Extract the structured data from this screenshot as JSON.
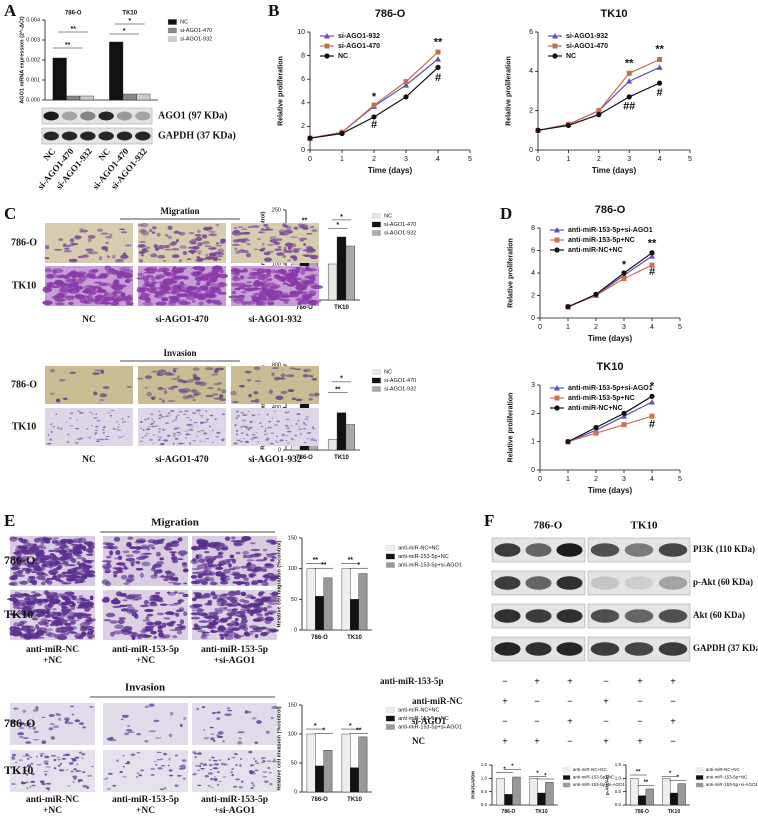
{
  "chart_data": [
    {
      "type": "bar",
      "ylabel": "AGO1 mRNA expression (2^-ΔCt)",
      "categories": [
        "786-O",
        "TK10"
      ],
      "series": [
        {
          "name": "NC",
          "color": "#111111",
          "values": [
            0.0021,
            0.0029
          ]
        },
        {
          "name": "si-AGO1-470",
          "color": "#888888",
          "values": [
            0.0002,
            0.0003
          ]
        },
        {
          "name": "si-AGO1-932",
          "color": "#cccccc",
          "values": [
            0.0002,
            0.0003
          ]
        }
      ],
      "ylim": [
        0,
        0.004
      ],
      "yticks": [
        {
          "value": 0,
          "label": "0.000"
        },
        {
          "value": 0.001,
          "label": "0.001"
        },
        {
          "value": 0.002,
          "label": "0.002"
        },
        {
          "value": 0.003,
          "label": "0.003"
        },
        {
          "value": 0.004,
          "label": "0.004"
        }
      ],
      "annotations": [
        {
          "text": "**",
          "x": 0,
          "y": 0.0035
        },
        {
          "text": "**",
          "x": -0.1,
          "y": 0.0027
        },
        {
          "text": "*",
          "x": 0,
          "y": 0.0039
        },
        {
          "text": "*",
          "x": -0.1,
          "y": 0.0034
        }
      ]
    },
    {
      "type": "line",
      "title": "786-O",
      "xlabel": "Time (days)",
      "ylabel": "Relative proliferation",
      "x": [
        0,
        1,
        2,
        3,
        4
      ],
      "series": [
        {
          "name": "si-AGO1-932",
          "color": "#5b4fc4",
          "values": [
            1,
            1.5,
            3.7,
            5.5,
            7.7
          ]
        },
        {
          "name": "si-AGO1-470",
          "color": "#c0704f",
          "values": [
            1,
            1.5,
            3.8,
            5.8,
            8.3
          ]
        },
        {
          "name": "NC",
          "color": "#111111",
          "values": [
            1,
            1.4,
            2.8,
            4.5,
            7.0
          ]
        }
      ],
      "xlim": [
        0,
        5
      ],
      "xticks": [
        0,
        1,
        2,
        3,
        4,
        5
      ],
      "ylim": [
        0,
        10
      ],
      "yticks": [
        0,
        2,
        4,
        6,
        8,
        10
      ],
      "annotations": [
        {
          "text": "*",
          "x": 2,
          "y": 4.5
        },
        {
          "text": "#",
          "x": 2,
          "y": 2.1
        },
        {
          "text": "**",
          "x": 4,
          "y": 9.1
        },
        {
          "text": "#",
          "x": 4,
          "y": 6.1
        }
      ]
    },
    {
      "type": "line",
      "title": "TK10",
      "xlabel": "Time (days)",
      "ylabel": "Relative proliferation",
      "x": [
        0,
        1,
        2,
        3,
        4
      ],
      "series": [
        {
          "name": "si-AGO1-932",
          "color": "#5b4fc4",
          "values": [
            1,
            1.3,
            2.0,
            3.5,
            4.2
          ]
        },
        {
          "name": "si-AGO1-470",
          "color": "#c0704f",
          "values": [
            1,
            1.3,
            2.0,
            3.9,
            4.6
          ]
        },
        {
          "name": "NC",
          "color": "#111111",
          "values": [
            1,
            1.25,
            1.8,
            2.7,
            3.4
          ]
        }
      ],
      "xlim": [
        0,
        5
      ],
      "xticks": [
        0,
        1,
        2,
        3,
        4,
        5
      ],
      "ylim": [
        0,
        6
      ],
      "yticks": [
        0,
        2,
        4,
        6
      ],
      "annotations": [
        {
          "text": "**",
          "x": 3,
          "y": 4.4
        },
        {
          "text": "##",
          "x": 3,
          "y": 2.2
        },
        {
          "text": "**",
          "x": 4,
          "y": 5.1
        },
        {
          "text": "#",
          "x": 4,
          "y": 2.9
        }
      ]
    },
    {
      "type": "bar",
      "ylabel": "Relative cell migration (%control)",
      "categories": [
        "786-O",
        "TK10"
      ],
      "series": [
        {
          "name": "NC",
          "color": "#e6e6e6",
          "values": [
            100,
            100
          ]
        },
        {
          "name": "si-AGO1-470",
          "color": "#111111",
          "values": [
            165,
            175
          ]
        },
        {
          "name": "si-AGO1-932",
          "color": "#aaaaaa",
          "values": [
            150,
            150
          ]
        }
      ],
      "ylim": [
        0,
        250
      ],
      "yticks": [
        0,
        50,
        100,
        150,
        200,
        250
      ],
      "annotations": [
        {
          "text": "**",
          "x": 0,
          "y": 218
        },
        {
          "text": "*",
          "x": -0.1,
          "y": 190
        },
        {
          "text": "*",
          "x": 0,
          "y": 228
        },
        {
          "text": "*",
          "x": -0.1,
          "y": 205
        }
      ]
    },
    {
      "type": "bar",
      "ylabel": "Relative cell invasion (%control)",
      "categories": [
        "786-O",
        "TK10"
      ],
      "series": [
        {
          "name": "NC",
          "color": "#e6e6e6",
          "values": [
            100,
            100
          ]
        },
        {
          "name": "si-AGO1-470",
          "color": "#111111",
          "values": [
            455,
            350
          ]
        },
        {
          "name": "si-AGO1-932",
          "color": "#aaaaaa",
          "values": [
            230,
            240
          ]
        }
      ],
      "ylim": [
        0,
        800
      ],
      "yticks": [
        0,
        200,
        400,
        600,
        800
      ],
      "annotations": [
        {
          "text": "*",
          "x": 0,
          "y": 690
        },
        {
          "text": "*",
          "x": -0.1,
          "y": 580
        },
        {
          "text": "*",
          "x": 0,
          "y": 660
        },
        {
          "text": "**",
          "x": -0.1,
          "y": 560
        }
      ]
    },
    {
      "type": "line",
      "title": "786-O",
      "xlabel": "Time (days)",
      "ylabel": "Relative proliferation",
      "x": [
        1,
        2,
        3,
        4
      ],
      "series": [
        {
          "name": "anti-miR-153-5p+si-AGO1",
          "color": "#5b4fc4",
          "values": [
            1,
            2.0,
            3.8,
            5.5
          ]
        },
        {
          "name": "anti-miR-153-5p+NC",
          "color": "#c8734f",
          "values": [
            1,
            2.0,
            3.5,
            4.7
          ]
        },
        {
          "name": "anti-miR-NC+NC",
          "color": "#111111",
          "values": [
            1,
            2.1,
            4.0,
            5.8
          ]
        }
      ],
      "xlim": [
        0,
        5
      ],
      "xticks": [
        0,
        1,
        2,
        3,
        4,
        5
      ],
      "ylim": [
        0,
        8
      ],
      "yticks": [
        0,
        2,
        4,
        6,
        8
      ],
      "annotations": [
        {
          "text": "*",
          "x": 3,
          "y": 4.7
        },
        {
          "text": "**",
          "x": 4,
          "y": 6.6
        },
        {
          "text": "#",
          "x": 4,
          "y": 4.1
        }
      ]
    },
    {
      "type": "line",
      "title": "TK10",
      "xlabel": "Time (days)",
      "ylabel": "Relative proliferation",
      "x": [
        1,
        2,
        3,
        4
      ],
      "series": [
        {
          "name": "anti-miR-153-5p+si-AGO1",
          "color": "#5b4fc4",
          "values": [
            1,
            1.4,
            1.9,
            2.4
          ]
        },
        {
          "name": "anti-miR-153-5p+NC",
          "color": "#c8734f",
          "values": [
            1,
            1.3,
            1.6,
            1.9
          ]
        },
        {
          "name": "anti-miR-NC+NC",
          "color": "#111111",
          "values": [
            1,
            1.5,
            2.0,
            2.6
          ]
        }
      ],
      "xlim": [
        0,
        5
      ],
      "xticks": [
        0,
        1,
        2,
        3,
        4,
        5
      ],
      "ylim": [
        0,
        3
      ],
      "yticks": [
        0,
        1,
        2,
        3
      ],
      "annotations": [
        {
          "text": "*",
          "x": 4,
          "y": 2.95
        },
        {
          "text": "#",
          "x": 4,
          "y": 1.6
        }
      ]
    },
    {
      "type": "bar",
      "ylabel": "Relative cell migration (%control)",
      "categories": [
        "786-O",
        "TK10"
      ],
      "series": [
        {
          "name": "anti-miR-NC+NC",
          "color": "#eeeeee",
          "values": [
            100,
            100
          ]
        },
        {
          "name": "anti-miR-153-5p+NC",
          "color": "#111111",
          "values": [
            55,
            50
          ]
        },
        {
          "name": "anti-miR-153-5p+si-AGO1",
          "color": "#999999",
          "values": [
            85,
            92
          ]
        }
      ],
      "ylim": [
        0,
        150
      ],
      "yticks": [
        0,
        50,
        100,
        150
      ],
      "annotations": [
        {
          "text": "**",
          "x": -0.12,
          "y": 112
        },
        {
          "text": "**",
          "x": 0.12,
          "y": 104
        },
        {
          "text": "**",
          "x": -0.12,
          "y": 112
        },
        {
          "text": "*",
          "x": 0.12,
          "y": 104
        }
      ]
    },
    {
      "type": "bar",
      "ylabel": "Relative cell invasion (%control)",
      "categories": [
        "786-O",
        "TK10"
      ],
      "series": [
        {
          "name": "anti-miR-NC+NC",
          "color": "#eeeeee",
          "values": [
            100,
            100
          ]
        },
        {
          "name": "anti-miR-153-5p+NC",
          "color": "#111111",
          "values": [
            45,
            42
          ]
        },
        {
          "name": "anti-miR-153-5p+si-AGO1",
          "color": "#999999",
          "values": [
            72,
            95
          ]
        }
      ],
      "ylim": [
        0,
        150
      ],
      "yticks": [
        0,
        50,
        100,
        150
      ],
      "annotations": [
        {
          "text": "*",
          "x": -0.12,
          "y": 112
        },
        {
          "text": "*",
          "x": 0.12,
          "y": 104
        },
        {
          "text": "*",
          "x": -0.12,
          "y": 112
        },
        {
          "text": "**",
          "x": 0.12,
          "y": 104
        }
      ]
    },
    {
      "type": "bar",
      "ylabel": "PI3K/GAPDH",
      "categories": [
        "786-O",
        "TK10"
      ],
      "series": [
        {
          "name": "anti-miR-NC+NC",
          "color": "#eeeeee",
          "values": [
            1.0,
            1.0
          ]
        },
        {
          "name": "anti-miR-153-5p+NC",
          "color": "#111111",
          "values": [
            0.4,
            0.45
          ]
        },
        {
          "name": "anti-miR-153-5p+si-AGO1",
          "color": "#999999",
          "values": [
            1.05,
            0.85
          ]
        }
      ],
      "ylim": [
        0,
        1.5
      ],
      "yticks": [
        {
          "value": 0,
          "label": "0.0"
        },
        {
          "value": 0.5,
          "label": "0.5"
        },
        {
          "value": 1,
          "label": "1.0"
        },
        {
          "value": 1.5,
          "label": "1.5"
        }
      ],
      "annotations": [
        {
          "text": "*",
          "x": -0.12,
          "y": 1.3
        },
        {
          "text": "*",
          "x": 0.12,
          "y": 1.4
        },
        {
          "text": "*",
          "x": -0.12,
          "y": 1.15
        },
        {
          "text": "*",
          "x": 0.12,
          "y": 1.05
        }
      ]
    },
    {
      "type": "bar",
      "ylabel": "p-Akt/Akt",
      "categories": [
        "786-O",
        "TK10"
      ],
      "series": [
        {
          "name": "anti-miR-NC+NC",
          "color": "#eeeeee",
          "values": [
            1.0,
            1.0
          ]
        },
        {
          "name": "anti-miR-153-5p+NC",
          "color": "#111111",
          "values": [
            0.35,
            0.45
          ]
        },
        {
          "name": "anti-miR-153-5p+si-AGO1",
          "color": "#999999",
          "values": [
            0.6,
            0.8
          ]
        }
      ],
      "ylim": [
        0,
        1.5
      ],
      "yticks": [
        {
          "value": 0,
          "label": "0.0"
        },
        {
          "value": 0.5,
          "label": "0.5"
        },
        {
          "value": 1,
          "label": "1.0"
        },
        {
          "value": 1.5,
          "label": "1.5"
        }
      ],
      "annotations": [
        {
          "text": "**",
          "x": -0.12,
          "y": 1.2
        },
        {
          "text": "**",
          "x": 0.12,
          "y": 0.8
        },
        {
          "text": "*",
          "x": -0.12,
          "y": 1.15
        },
        {
          "text": "*",
          "x": 0.12,
          "y": 1.0
        }
      ]
    }
  ],
  "panel_labels": [
    "A",
    "B",
    "C",
    "D",
    "E",
    "F"
  ],
  "panel_A": {
    "bands": [
      "AGO1 (97 KDa)",
      "GAPDH (37 KDa)"
    ],
    "lanes": [
      "NC",
      "si-AGO1-470",
      "si-AGO1-932",
      "NC",
      "si-AGO1-470",
      "si-AGO1-932"
    ]
  },
  "panel_C": {
    "migration": "Migration",
    "invasion": "Invasion",
    "rows": [
      "786-O",
      "TK10"
    ],
    "columns": [
      "NC",
      "si-AGO1-470",
      "si-AGO1-932"
    ]
  },
  "panel_E": {
    "migration": "Migration",
    "invasion": "Invasion",
    "rows": [
      "786-O",
      "TK10"
    ],
    "columns": [
      [
        "anti-miR-NC",
        "+NC"
      ],
      [
        "anti-miR-153-5p",
        "+NC"
      ],
      [
        "anti-miR-153-5p",
        "+si-AGO1"
      ]
    ]
  },
  "panel_F": {
    "cell_lines": [
      "786-O",
      "TK10"
    ],
    "bands": [
      "PI3K (110 KDa)",
      "p-Akt (60 KDa)",
      "Akt (60 KDa)",
      "GAPDH (37 KDa)"
    ],
    "treatments": [
      {
        "name": "anti-miR-153-5p",
        "signs": [
          "−",
          "+",
          "+",
          "−",
          "+",
          "+"
        ]
      },
      {
        "name": "anti-miR-NC",
        "signs": [
          "+",
          "−",
          "−",
          "+",
          "−",
          "−"
        ]
      },
      {
        "name": "si-AGO1",
        "signs": [
          "−",
          "−",
          "+",
          "−",
          "−",
          "+"
        ]
      },
      {
        "name": "NC",
        "signs": [
          "+",
          "+",
          "−",
          "+",
          "+",
          "−"
        ]
      }
    ]
  }
}
